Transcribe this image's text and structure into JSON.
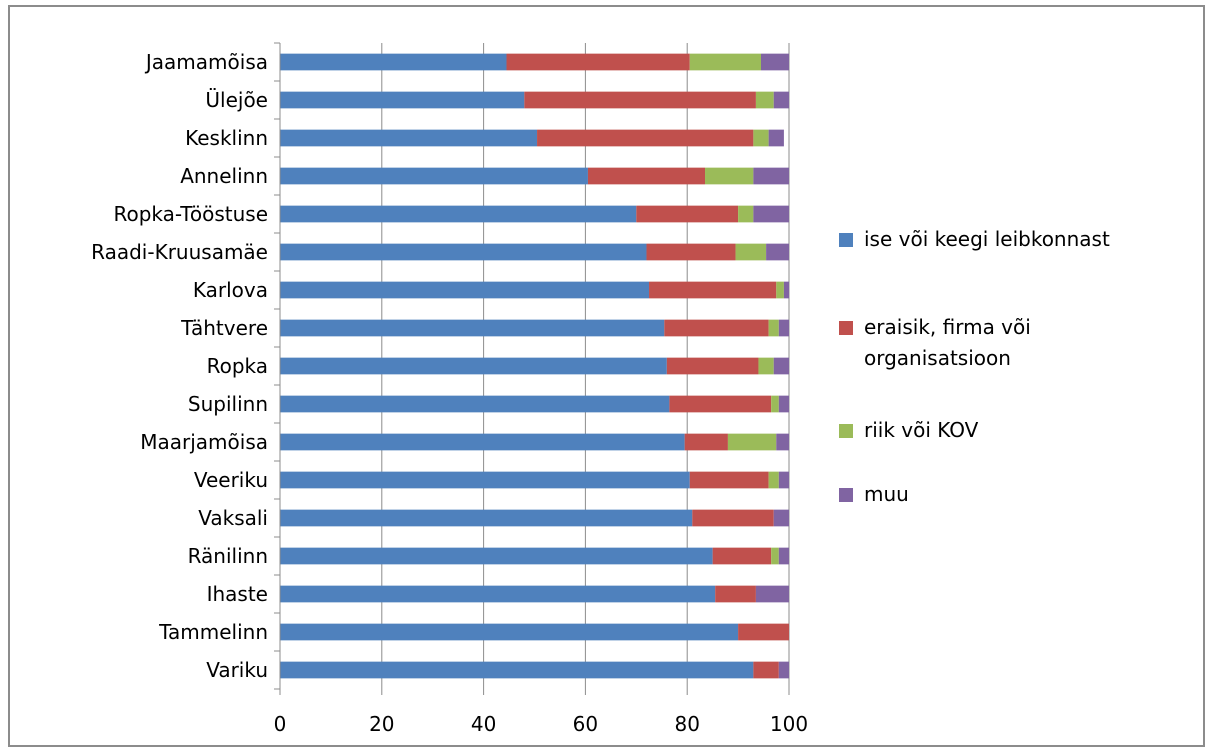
{
  "chart_data": {
    "type": "bar",
    "orientation": "horizontal",
    "stacked": true,
    "title": "",
    "xlabel": "",
    "ylabel": "",
    "xlim": [
      0,
      100
    ],
    "xticks": [
      0,
      20,
      40,
      60,
      80,
      100
    ],
    "grid": true,
    "legend_position": "right",
    "categories": [
      "Jaamamõisa",
      "Ülejõe",
      "Kesklinn",
      "Annelinn",
      "Ropka-Tööstuse",
      "Raadi-Kruusamäe",
      "Karlova",
      "Tähtvere",
      "Ropka",
      "Supilinn",
      "Maarjamõisa",
      "Veeriku",
      "Vaksali",
      "Ränilinn",
      "Ihaste",
      "Tammelinn",
      "Variku"
    ],
    "series": [
      {
        "name": "ise või keegi leibkonnast",
        "color": "#4f81bd",
        "values": [
          44.5,
          48,
          50.5,
          60.5,
          70,
          72,
          72.5,
          75.5,
          76,
          76.5,
          79.5,
          80.5,
          81,
          85,
          85.5,
          90,
          93
        ]
      },
      {
        "name": "eraisik, firma või organisatsioon",
        "color": "#c0504d",
        "values": [
          36,
          45.5,
          42.5,
          23,
          20,
          17.5,
          25,
          20.5,
          18,
          20,
          8.5,
          15.5,
          16,
          11.5,
          8,
          10,
          5
        ]
      },
      {
        "name": "riik või KOV",
        "color": "#9bbb59",
        "values": [
          14,
          3.5,
          3,
          9.5,
          3,
          6,
          1.5,
          2,
          3,
          1.5,
          9.5,
          2,
          0,
          1.5,
          0,
          0,
          0
        ]
      },
      {
        "name": "muu",
        "color": "#8064a2",
        "values": [
          5.5,
          3,
          3,
          7,
          7,
          4.5,
          1,
          2,
          3,
          2,
          2.5,
          2,
          3,
          2,
          6.5,
          0,
          2
        ]
      }
    ]
  }
}
